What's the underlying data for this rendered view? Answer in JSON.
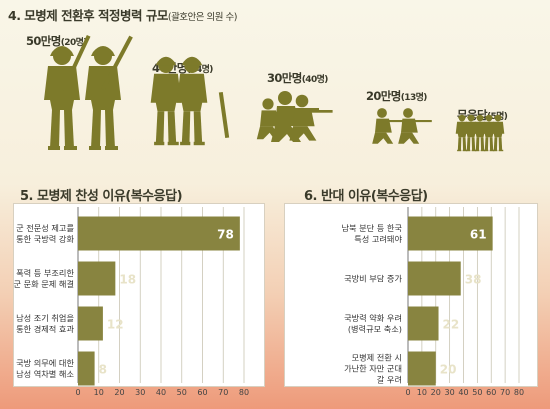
{
  "header": {
    "title": "4. 모병제 전환후 적정병력 규모",
    "subtitle": "(괄호안은 의원 수)"
  },
  "troop_groups": [
    {
      "size": "50만명",
      "count": "(20명)"
    },
    {
      "size": "40만명",
      "count": "(24명)"
    },
    {
      "size": "30만명",
      "count": "(40명)"
    },
    {
      "size": "20만명",
      "count": "(13명)"
    },
    {
      "size": "무응답",
      "count": "(5명)"
    }
  ],
  "colors": {
    "soldier": "#7d7a2a",
    "bar": "#888440",
    "grid": "#c9c5b3"
  },
  "chart_data": [
    {
      "type": "bar",
      "orientation": "horizontal",
      "title": "5. 모병제 찬성 이유(복수응답)",
      "categories": [
        [
          "군 전문성 제고를",
          "통한 국방력 강화"
        ],
        [
          "폭력 등 부조리한",
          "군 문화 문제 해결"
        ],
        [
          "남성 조기 취업을",
          "통한 경제적 효과"
        ],
        [
          "국방 의무에 대한",
          "남성 역차별 해소"
        ]
      ],
      "values": [
        78,
        18,
        12,
        8
      ],
      "xlim": [
        0,
        80
      ],
      "xticks": [
        0,
        10,
        20,
        30,
        40,
        50,
        60,
        70,
        80
      ],
      "grid": true
    },
    {
      "type": "bar",
      "orientation": "horizontal",
      "title": "6. 반대 이유(복수응답)",
      "categories": [
        [
          "남북 분단 등 한국",
          "특성 고려돼야"
        ],
        [
          "국방비 부담 증가"
        ],
        [
          "국방력 약화 우려",
          "(병력규모 축소)"
        ],
        [
          "모병제 전환 시",
          "가난한 자만 군대",
          "갈 우려"
        ]
      ],
      "values": [
        61,
        38,
        22,
        20
      ],
      "xlim": [
        0,
        80
      ],
      "xticks": [
        0,
        10,
        20,
        30,
        40,
        50,
        60,
        70,
        80
      ],
      "grid": true
    }
  ]
}
